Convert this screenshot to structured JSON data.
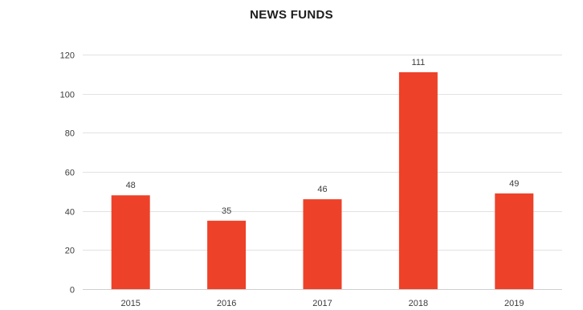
{
  "chart_data": {
    "type": "bar",
    "title": "NEWS FUNDS",
    "xlabel": "",
    "ylabel": "",
    "categories": [
      "2015",
      "2016",
      "2017",
      "2018",
      "2019"
    ],
    "series": [
      {
        "values": [
          48,
          35,
          46,
          111,
          49
        ]
      }
    ],
    "ylim": [
      0,
      120
    ],
    "yticks": [
      0,
      20,
      40,
      60,
      80,
      100,
      120
    ],
    "grid": true,
    "legend": "none",
    "data_labels": true,
    "colors": {
      "bar": "#ee4129",
      "grid": "#e2e2e2",
      "axis": "#cfcfcf"
    }
  }
}
